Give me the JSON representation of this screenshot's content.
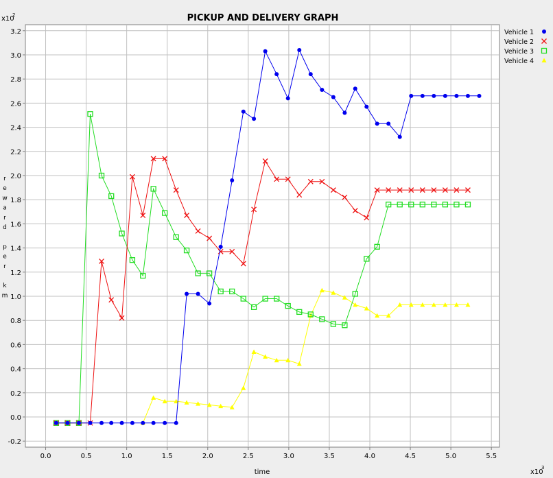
{
  "chart_data": {
    "type": "line",
    "title": "PICKUP AND DELIVERY GRAPH",
    "xlabel": "time",
    "ylabel": "reward per km",
    "x_scale_label": "x10",
    "x_scale_exp": "3",
    "y_scale_label": "x10",
    "y_scale_exp": "2",
    "xlim": [
      -0.25,
      5.6
    ],
    "ylim": [
      -0.25,
      3.25
    ],
    "x_ticks": [
      "0.0",
      "0.5",
      "1.0",
      "1.5",
      "2.0",
      "2.5",
      "3.0",
      "3.5",
      "4.0",
      "4.5",
      "5.0",
      "5.5"
    ],
    "y_ticks": [
      "-0.2",
      "0.0",
      "0.2",
      "0.4",
      "0.6",
      "0.8",
      "1.0",
      "1.2",
      "1.4",
      "1.6",
      "1.8",
      "2.0",
      "2.2",
      "2.4",
      "2.6",
      "2.8",
      "3.0",
      "3.2"
    ],
    "grid": true,
    "legend_position": "top-right",
    "background": "#ffffff",
    "series": [
      {
        "name": "Vehicle 1",
        "color": "#0000ee",
        "marker": "circle",
        "points": [
          [
            0.13,
            -0.05
          ],
          [
            0.27,
            -0.05
          ],
          [
            0.41,
            -0.05
          ],
          [
            0.55,
            -0.05
          ],
          [
            0.69,
            -0.05
          ],
          [
            0.81,
            -0.05
          ],
          [
            0.94,
            -0.05
          ],
          [
            1.07,
            -0.05
          ],
          [
            1.2,
            -0.05
          ],
          [
            1.33,
            -0.05
          ],
          [
            1.47,
            -0.05
          ],
          [
            1.61,
            -0.05
          ],
          [
            1.74,
            1.02
          ],
          [
            1.88,
            1.02
          ],
          [
            2.02,
            0.94
          ],
          [
            2.16,
            1.41
          ],
          [
            2.3,
            1.96
          ],
          [
            2.44,
            2.53
          ],
          [
            2.57,
            2.47
          ],
          [
            2.71,
            3.03
          ],
          [
            2.85,
            2.84
          ],
          [
            2.99,
            2.64
          ],
          [
            3.13,
            3.04
          ],
          [
            3.27,
            2.84
          ],
          [
            3.41,
            2.71
          ],
          [
            3.55,
            2.65
          ],
          [
            3.69,
            2.52
          ],
          [
            3.82,
            2.72
          ],
          [
            3.96,
            2.57
          ],
          [
            4.09,
            2.43
          ],
          [
            4.23,
            2.43
          ],
          [
            4.37,
            2.32
          ],
          [
            4.51,
            2.66
          ],
          [
            4.65,
            2.66
          ],
          [
            4.79,
            2.66
          ],
          [
            4.93,
            2.66
          ],
          [
            5.07,
            2.66
          ],
          [
            5.21,
            2.66
          ],
          [
            5.35,
            2.66
          ]
        ]
      },
      {
        "name": "Vehicle 2",
        "color": "#ee1111",
        "marker": "x",
        "points": [
          [
            0.13,
            -0.05
          ],
          [
            0.27,
            -0.05
          ],
          [
            0.41,
            -0.05
          ],
          [
            0.55,
            -0.05
          ],
          [
            0.69,
            1.29
          ],
          [
            0.81,
            0.97
          ],
          [
            0.94,
            0.82
          ],
          [
            1.07,
            1.99
          ],
          [
            1.2,
            1.67
          ],
          [
            1.33,
            2.14
          ],
          [
            1.47,
            2.14
          ],
          [
            1.61,
            1.88
          ],
          [
            1.74,
            1.67
          ],
          [
            1.88,
            1.54
          ],
          [
            2.02,
            1.48
          ],
          [
            2.16,
            1.37
          ],
          [
            2.3,
            1.37
          ],
          [
            2.44,
            1.27
          ],
          [
            2.57,
            1.72
          ],
          [
            2.71,
            2.12
          ],
          [
            2.85,
            1.97
          ],
          [
            2.99,
            1.97
          ],
          [
            3.13,
            1.84
          ],
          [
            3.27,
            1.95
          ],
          [
            3.41,
            1.95
          ],
          [
            3.55,
            1.88
          ],
          [
            3.69,
            1.82
          ],
          [
            3.82,
            1.71
          ],
          [
            3.96,
            1.65
          ],
          [
            4.09,
            1.88
          ],
          [
            4.23,
            1.88
          ],
          [
            4.37,
            1.88
          ],
          [
            4.51,
            1.88
          ],
          [
            4.65,
            1.88
          ],
          [
            4.79,
            1.88
          ],
          [
            4.93,
            1.88
          ],
          [
            5.07,
            1.88
          ],
          [
            5.21,
            1.88
          ]
        ]
      },
      {
        "name": "Vehicle 3",
        "color": "#22dd22",
        "marker": "square",
        "points": [
          [
            0.13,
            -0.05
          ],
          [
            0.27,
            -0.05
          ],
          [
            0.41,
            -0.05
          ],
          [
            0.55,
            2.51
          ],
          [
            0.69,
            2.0
          ],
          [
            0.81,
            1.83
          ],
          [
            0.94,
            1.52
          ],
          [
            1.07,
            1.3
          ],
          [
            1.2,
            1.17
          ],
          [
            1.33,
            1.89
          ],
          [
            1.47,
            1.69
          ],
          [
            1.61,
            1.49
          ],
          [
            1.74,
            1.38
          ],
          [
            1.88,
            1.19
          ],
          [
            2.02,
            1.19
          ],
          [
            2.16,
            1.04
          ],
          [
            2.3,
            1.04
          ],
          [
            2.44,
            0.98
          ],
          [
            2.57,
            0.91
          ],
          [
            2.71,
            0.98
          ],
          [
            2.85,
            0.98
          ],
          [
            2.99,
            0.92
          ],
          [
            3.13,
            0.87
          ],
          [
            3.27,
            0.85
          ],
          [
            3.41,
            0.81
          ],
          [
            3.55,
            0.77
          ],
          [
            3.69,
            0.76
          ],
          [
            3.82,
            1.02
          ],
          [
            3.96,
            1.31
          ],
          [
            4.09,
            1.41
          ],
          [
            4.23,
            1.76
          ],
          [
            4.37,
            1.76
          ],
          [
            4.51,
            1.76
          ],
          [
            4.65,
            1.76
          ],
          [
            4.79,
            1.76
          ],
          [
            4.93,
            1.76
          ],
          [
            5.07,
            1.76
          ],
          [
            5.21,
            1.76
          ]
        ]
      },
      {
        "name": "Vehicle 4",
        "color": "#ffff00",
        "marker": "triangle",
        "points": [
          [
            1.2,
            -0.05
          ],
          [
            1.33,
            0.16
          ],
          [
            1.47,
            0.13
          ],
          [
            1.61,
            0.13
          ],
          [
            1.74,
            0.12
          ],
          [
            1.88,
            0.11
          ],
          [
            2.02,
            0.1
          ],
          [
            2.16,
            0.09
          ],
          [
            2.3,
            0.08
          ],
          [
            2.44,
            0.24
          ],
          [
            2.57,
            0.54
          ],
          [
            2.71,
            0.5
          ],
          [
            2.85,
            0.47
          ],
          [
            2.99,
            0.47
          ],
          [
            3.13,
            0.44
          ],
          [
            3.27,
            0.84
          ],
          [
            3.41,
            1.05
          ],
          [
            3.55,
            1.03
          ],
          [
            3.69,
            0.99
          ],
          [
            3.82,
            0.93
          ],
          [
            3.96,
            0.9
          ],
          [
            4.09,
            0.84
          ],
          [
            4.23,
            0.84
          ],
          [
            4.37,
            0.93
          ],
          [
            4.51,
            0.93
          ],
          [
            4.65,
            0.93
          ],
          [
            4.79,
            0.93
          ],
          [
            4.93,
            0.93
          ],
          [
            5.07,
            0.93
          ],
          [
            5.21,
            0.93
          ]
        ]
      }
    ]
  }
}
